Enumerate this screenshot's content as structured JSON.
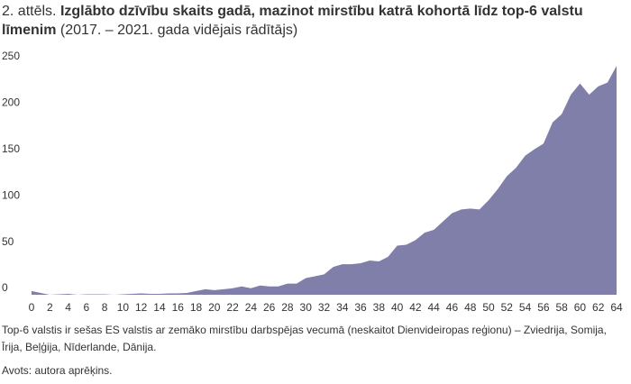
{
  "chart_data": {
    "type": "area",
    "title_number": "2. attēls.",
    "title": "Izglābto dzīvību skaits gadā, mazinot mirstību katrā kohortā līdz top-6 valstu līmenim",
    "subtitle": "(2017. – 2021. gada vidējais rādītājs)",
    "note": "Top-6 valstis ir sešas ES valstis ar zemāko mirstību darbspējas vecumā (neskaitot Dienvideiropas reģionu) – Zviedrija, Somija, Īrija, Beļģija, Nīderlande, Dānija.",
    "source": "Avots: autora aprēķins.",
    "color": "#7f7faa",
    "x": [
      0,
      1,
      2,
      3,
      4,
      5,
      6,
      7,
      8,
      9,
      10,
      11,
      12,
      13,
      14,
      15,
      16,
      17,
      18,
      19,
      20,
      21,
      22,
      23,
      24,
      25,
      26,
      27,
      28,
      29,
      30,
      31,
      32,
      33,
      34,
      35,
      36,
      37,
      38,
      39,
      40,
      41,
      42,
      43,
      44,
      45,
      46,
      47,
      48,
      49,
      50,
      51,
      52,
      53,
      54,
      55,
      56,
      57,
      58,
      59,
      60,
      61,
      62,
      63,
      64
    ],
    "values": [
      4,
      2,
      0,
      0.5,
      1,
      0,
      0.5,
      0.5,
      0.5,
      0,
      0.5,
      1,
      1.5,
      1,
      1,
      1.5,
      1.5,
      2,
      4,
      6,
      5,
      6,
      7,
      9,
      7,
      10,
      9,
      9,
      12,
      12,
      18,
      20,
      22,
      30,
      33,
      33,
      34,
      37,
      36,
      41,
      53,
      54,
      59,
      67,
      70,
      79,
      88,
      92,
      93,
      92,
      102,
      114,
      128,
      137,
      150,
      157,
      163,
      186,
      195,
      216,
      228,
      216,
      225,
      229,
      247
    ],
    "xlim": [
      0,
      64
    ],
    "xticks": [
      0,
      2,
      4,
      6,
      8,
      10,
      12,
      14,
      16,
      18,
      20,
      22,
      24,
      26,
      28,
      30,
      32,
      34,
      36,
      38,
      40,
      42,
      44,
      46,
      48,
      50,
      52,
      54,
      56,
      58,
      60,
      62,
      64
    ],
    "ylim": [
      0,
      250
    ],
    "yticks": [
      0,
      50,
      100,
      150,
      200,
      250
    ],
    "grid": false
  }
}
